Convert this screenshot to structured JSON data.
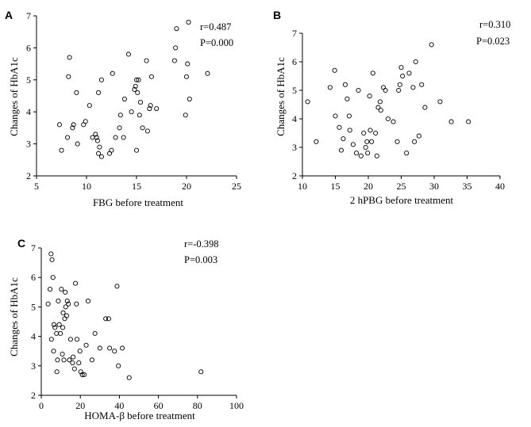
{
  "chart_data": [
    {
      "panel": "A",
      "type": "scatter",
      "xlabel": "FBG before treatment",
      "ylabel": "Changes of HbA1c",
      "xlim": [
        5,
        25
      ],
      "ylim": [
        2,
        7
      ],
      "xticks": [
        "5",
        "10",
        "15",
        "20",
        "25"
      ],
      "yticks": [
        "2",
        "3",
        "4",
        "5",
        "6",
        "7"
      ],
      "r_label": "r=0.487",
      "p_label": "P=0.000",
      "grid": false,
      "points": [
        [
          7.3,
          3.6
        ],
        [
          7.5,
          2.8
        ],
        [
          8.1,
          3.2
        ],
        [
          8.3,
          5.7
        ],
        [
          8.2,
          5.1
        ],
        [
          8.6,
          3.5
        ],
        [
          8.7,
          3.6
        ],
        [
          9.0,
          4.6
        ],
        [
          9.1,
          3.0
        ],
        [
          9.7,
          3.6
        ],
        [
          9.9,
          3.7
        ],
        [
          10.3,
          4.2
        ],
        [
          10.6,
          3.2
        ],
        [
          10.9,
          3.3
        ],
        [
          11.0,
          3.2
        ],
        [
          11.1,
          3.1
        ],
        [
          11.2,
          4.6
        ],
        [
          11.3,
          2.9
        ],
        [
          11.2,
          2.7
        ],
        [
          11.5,
          2.6
        ],
        [
          11.5,
          5.0
        ],
        [
          12.3,
          2.7
        ],
        [
          12.5,
          2.8
        ],
        [
          12.6,
          5.2
        ],
        [
          12.9,
          3.2
        ],
        [
          13.3,
          3.5
        ],
        [
          13.4,
          3.9
        ],
        [
          13.7,
          3.2
        ],
        [
          13.8,
          4.4
        ],
        [
          14.2,
          5.8
        ],
        [
          14.5,
          4.0
        ],
        [
          14.8,
          4.7
        ],
        [
          14.9,
          4.8
        ],
        [
          15.0,
          5.0
        ],
        [
          15.1,
          4.6
        ],
        [
          15.2,
          5.0
        ],
        [
          15.0,
          2.8
        ],
        [
          15.3,
          3.9
        ],
        [
          15.4,
          4.3
        ],
        [
          15.6,
          3.5
        ],
        [
          16.0,
          5.6
        ],
        [
          16.1,
          3.4
        ],
        [
          16.3,
          4.1
        ],
        [
          16.4,
          4.2
        ],
        [
          16.5,
          5.1
        ],
        [
          17.0,
          4.1
        ],
        [
          18.8,
          5.6
        ],
        [
          18.9,
          6.0
        ],
        [
          19.0,
          6.6
        ],
        [
          19.9,
          3.9
        ],
        [
          20.0,
          5.1
        ],
        [
          20.1,
          5.5
        ],
        [
          20.2,
          6.8
        ],
        [
          20.3,
          4.4
        ],
        [
          22.1,
          5.2
        ]
      ]
    },
    {
      "panel": "B",
      "type": "scatter",
      "xlabel": "2 hPBG before treatment",
      "ylabel": "Changes of HbA1c",
      "xlim": [
        10,
        40
      ],
      "ylim": [
        2,
        7
      ],
      "xticks": [
        "10",
        "15",
        "20",
        "25",
        "30",
        "35",
        "40"
      ],
      "yticks": [
        "2",
        "3",
        "4",
        "5",
        "6",
        "7"
      ],
      "r_label": "r=0.310",
      "p_label": "P=0.023",
      "grid": false,
      "points": [
        [
          10.8,
          4.6
        ],
        [
          12.1,
          3.2
        ],
        [
          14.2,
          5.1
        ],
        [
          14.9,
          5.7
        ],
        [
          15.0,
          4.1
        ],
        [
          15.6,
          3.7
        ],
        [
          15.9,
          2.9
        ],
        [
          16.2,
          3.3
        ],
        [
          16.5,
          5.2
        ],
        [
          16.8,
          4.7
        ],
        [
          17.1,
          4.1
        ],
        [
          17.2,
          3.6
        ],
        [
          17.7,
          3.1
        ],
        [
          18.2,
          2.8
        ],
        [
          18.5,
          5.0
        ],
        [
          18.9,
          2.7
        ],
        [
          19.3,
          3.5
        ],
        [
          19.6,
          3.0
        ],
        [
          19.8,
          3.2
        ],
        [
          19.9,
          2.8
        ],
        [
          20.2,
          4.8
        ],
        [
          20.3,
          3.6
        ],
        [
          20.5,
          3.2
        ],
        [
          20.7,
          5.6
        ],
        [
          21.1,
          3.5
        ],
        [
          21.3,
          2.7
        ],
        [
          21.5,
          4.4
        ],
        [
          21.8,
          4.6
        ],
        [
          21.9,
          4.3
        ],
        [
          22.3,
          5.1
        ],
        [
          22.6,
          5.0
        ],
        [
          23.0,
          4.0
        ],
        [
          23.8,
          3.9
        ],
        [
          24.4,
          3.2
        ],
        [
          24.6,
          5.0
        ],
        [
          24.8,
          5.2
        ],
        [
          25.0,
          5.8
        ],
        [
          25.2,
          5.5
        ],
        [
          25.8,
          2.8
        ],
        [
          26.2,
          5.6
        ],
        [
          26.8,
          5.1
        ],
        [
          27.0,
          3.2
        ],
        [
          27.2,
          6.0
        ],
        [
          27.7,
          3.4
        ],
        [
          28.1,
          5.2
        ],
        [
          28.6,
          4.4
        ],
        [
          29.6,
          6.6
        ],
        [
          30.9,
          4.6
        ],
        [
          32.6,
          3.9
        ],
        [
          35.2,
          3.9
        ]
      ]
    },
    {
      "panel": "C",
      "type": "scatter",
      "xlabel": "HOMA-β before treatment",
      "ylabel": "Changes of HbA1c",
      "xlim": [
        0,
        100
      ],
      "ylim": [
        2,
        7
      ],
      "xticks": [
        "0",
        "20",
        "40",
        "60",
        "80",
        "100"
      ],
      "yticks": [
        "2",
        "3",
        "4",
        "5",
        "6",
        "7"
      ],
      "r_label": "r=-0.398",
      "p_label": "P=0.003",
      "grid": false,
      "points": [
        [
          3.5,
          5.1
        ],
        [
          4.5,
          5.6
        ],
        [
          5.0,
          6.8
        ],
        [
          5.2,
          3.9
        ],
        [
          5.5,
          6.6
        ],
        [
          6.0,
          6.0
        ],
        [
          6.3,
          3.5
        ],
        [
          6.5,
          4.4
        ],
        [
          7.0,
          4.3
        ],
        [
          7.8,
          4.1
        ],
        [
          8.0,
          2.8
        ],
        [
          8.3,
          3.2
        ],
        [
          8.7,
          5.2
        ],
        [
          9.2,
          4.4
        ],
        [
          9.8,
          4.1
        ],
        [
          10.3,
          5.6
        ],
        [
          10.8,
          3.4
        ],
        [
          11.0,
          4.3
        ],
        [
          11.2,
          4.8
        ],
        [
          11.6,
          3.2
        ],
        [
          12.0,
          4.6
        ],
        [
          12.3,
          5.5
        ],
        [
          12.5,
          5.0
        ],
        [
          13.0,
          4.7
        ],
        [
          13.3,
          5.2
        ],
        [
          13.9,
          5.1
        ],
        [
          14.4,
          3.2
        ],
        [
          15.0,
          3.9
        ],
        [
          16.0,
          3.1
        ],
        [
          16.3,
          3.3
        ],
        [
          17.0,
          2.9
        ],
        [
          17.5,
          5.8
        ],
        [
          18.0,
          5.1
        ],
        [
          18.3,
          3.9
        ],
        [
          19.2,
          3.1
        ],
        [
          19.8,
          3.5
        ],
        [
          20.2,
          2.8
        ],
        [
          21.0,
          2.7
        ],
        [
          22.0,
          2.7
        ],
        [
          23.0,
          3.7
        ],
        [
          24.0,
          5.2
        ],
        [
          26.0,
          3.2
        ],
        [
          27.5,
          4.1
        ],
        [
          30.0,
          3.6
        ],
        [
          33.0,
          4.6
        ],
        [
          34.5,
          4.6
        ],
        [
          35.0,
          3.6
        ],
        [
          37.5,
          3.5
        ],
        [
          38.8,
          5.7
        ],
        [
          39.5,
          3.0
        ],
        [
          41.5,
          3.6
        ],
        [
          45.0,
          2.6
        ],
        [
          81.8,
          2.8
        ]
      ]
    }
  ]
}
